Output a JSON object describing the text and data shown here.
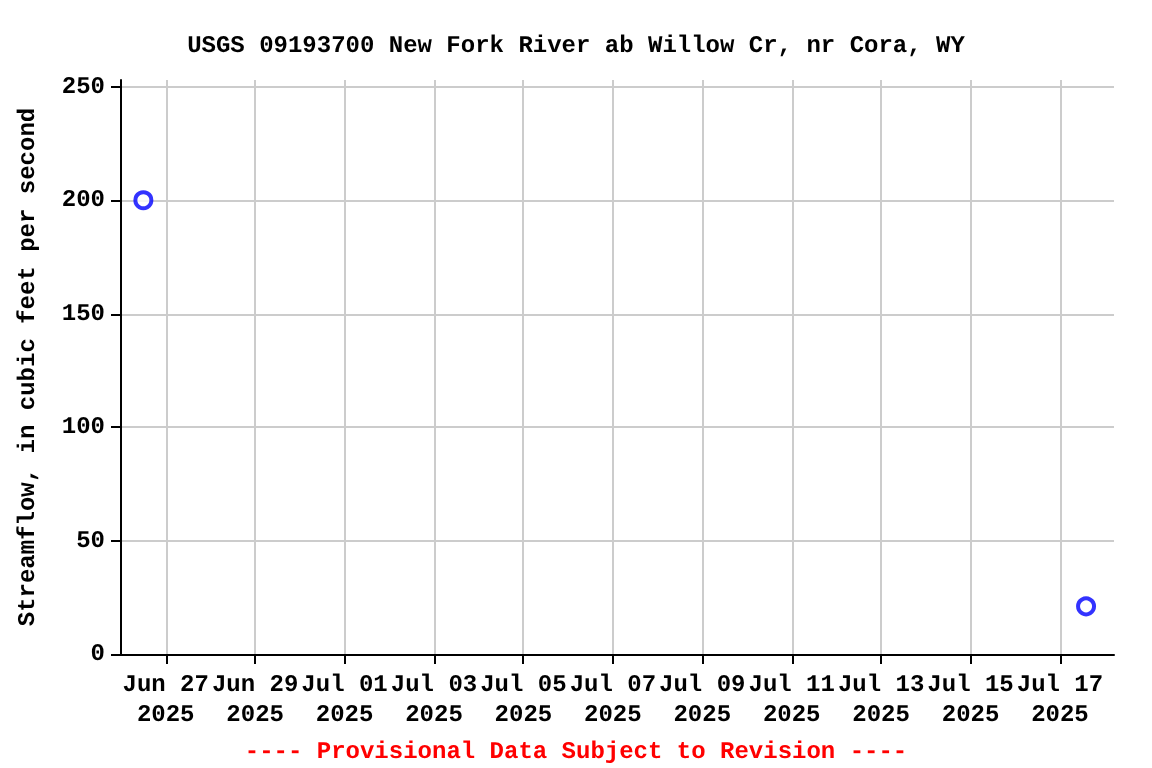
{
  "chart_data": {
    "type": "scatter",
    "title": "USGS 09193700 New Fork River ab Willow Cr, nr Cora, WY",
    "ylabel": "Streamflow, in cubic feet per second",
    "annotations": [
      "---- Provisional Data Subject to Revision ----"
    ],
    "x": [
      "2025-06-26T12:00",
      "2025-07-17T14:00"
    ],
    "series": [
      {
        "color": "#0000ff",
        "values": [
          200,
          21
        ]
      }
    ],
    "marker": "circle",
    "xlim": [
      "2025-06-26T00:00",
      "2025-07-18T05:00"
    ],
    "xticks": [
      {
        "value": "2025-06-27",
        "label": "Jun 27\n2025"
      },
      {
        "value": "2025-06-29",
        "label": "Jun 29\n2025"
      },
      {
        "value": "2025-07-01",
        "label": "Jul 01\n2025"
      },
      {
        "value": "2025-07-03",
        "label": "Jul 03\n2025"
      },
      {
        "value": "2025-07-05",
        "label": "Jul 05\n2025"
      },
      {
        "value": "2025-07-07",
        "label": "Jul 07\n2025"
      },
      {
        "value": "2025-07-09",
        "label": "Jul 09\n2025"
      },
      {
        "value": "2025-07-11",
        "label": "Jul 11\n2025"
      },
      {
        "value": "2025-07-13",
        "label": "Jul 13\n2025"
      },
      {
        "value": "2025-07-15",
        "label": "Jul 15\n2025"
      },
      {
        "value": "2025-07-17",
        "label": "Jul 17\n2025"
      }
    ],
    "ylim": [
      0,
      253
    ],
    "yticks": [
      0,
      50,
      100,
      150,
      200,
      250
    ],
    "grid": true
  }
}
